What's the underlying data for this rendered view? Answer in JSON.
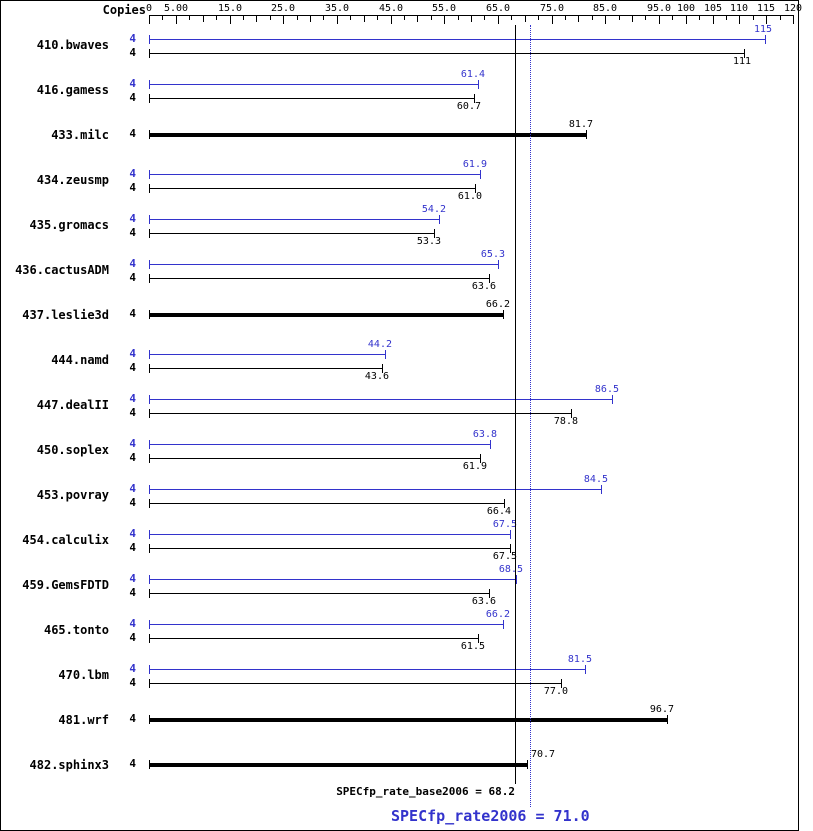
{
  "header": {
    "copies_label": "Copies"
  },
  "chart_data": {
    "type": "bar",
    "orientation": "horizontal",
    "colors": {
      "peak": "#3333cc",
      "base": "#000000"
    },
    "axis": {
      "min": 0,
      "max": 120,
      "ticks": [
        {
          "value": 0,
          "label": "0"
        },
        {
          "value": 5,
          "label": "5.00"
        },
        {
          "value": 15,
          "label": "15.0"
        },
        {
          "value": 25,
          "label": "25.0"
        },
        {
          "value": 35,
          "label": "35.0"
        },
        {
          "value": 45,
          "label": "45.0"
        },
        {
          "value": 55,
          "label": "55.0"
        },
        {
          "value": 65,
          "label": "65.0"
        },
        {
          "value": 75,
          "label": "75.0"
        },
        {
          "value": 85,
          "label": "85.0"
        },
        {
          "value": 95,
          "label": "95.0"
        },
        {
          "value": 100,
          "label": "100"
        },
        {
          "value": 105,
          "label": "105"
        },
        {
          "value": 110,
          "label": "110"
        },
        {
          "value": 115,
          "label": "115"
        },
        {
          "value": 120,
          "label": "120"
        }
      ]
    },
    "benchmarks": [
      {
        "name": "410.bwaves",
        "copies": "4",
        "peak": 115,
        "peak_label": "115",
        "base": 111,
        "base_label": "111"
      },
      {
        "name": "416.gamess",
        "copies": "4",
        "peak": 61.4,
        "peak_label": "61.4",
        "base": 60.7,
        "base_label": "60.7"
      },
      {
        "name": "433.milc",
        "copies": "4",
        "single": true,
        "base": 81.7,
        "base_label": "81.7"
      },
      {
        "name": "434.zeusmp",
        "copies": "4",
        "peak": 61.9,
        "peak_label": "61.9",
        "base": 61.0,
        "base_label": "61.0"
      },
      {
        "name": "435.gromacs",
        "copies": "4",
        "peak": 54.2,
        "peak_label": "54.2",
        "base": 53.3,
        "base_label": "53.3"
      },
      {
        "name": "436.cactusADM",
        "copies": "4",
        "peak": 65.3,
        "peak_label": "65.3",
        "base": 63.6,
        "base_label": "63.6"
      },
      {
        "name": "437.leslie3d",
        "copies": "4",
        "single": true,
        "base": 66.2,
        "base_label": "66.2"
      },
      {
        "name": "444.namd",
        "copies": "4",
        "peak": 44.2,
        "peak_label": "44.2",
        "base": 43.6,
        "base_label": "43.6"
      },
      {
        "name": "447.dealII",
        "copies": "4",
        "peak": 86.5,
        "peak_label": "86.5",
        "base": 78.8,
        "base_label": "78.8"
      },
      {
        "name": "450.soplex",
        "copies": "4",
        "peak": 63.8,
        "peak_label": "63.8",
        "base": 61.9,
        "base_label": "61.9"
      },
      {
        "name": "453.povray",
        "copies": "4",
        "peak": 84.5,
        "peak_label": "84.5",
        "base": 66.4,
        "base_label": "66.4"
      },
      {
        "name": "454.calculix",
        "copies": "4",
        "peak": 67.5,
        "peak_label": "67.5",
        "base": 67.5,
        "base_label": "67.5"
      },
      {
        "name": "459.GemsFDTD",
        "copies": "4",
        "peak": 68.5,
        "peak_label": "68.5",
        "base": 63.6,
        "base_label": "63.6"
      },
      {
        "name": "465.tonto",
        "copies": "4",
        "peak": 66.2,
        "peak_label": "66.2",
        "base": 61.5,
        "base_label": "61.5"
      },
      {
        "name": "470.lbm",
        "copies": "4",
        "peak": 81.5,
        "peak_label": "81.5",
        "base": 77.0,
        "base_label": "77.0"
      },
      {
        "name": "481.wrf",
        "copies": "4",
        "single": true,
        "base": 96.7,
        "base_label": "96.7"
      },
      {
        "name": "482.sphinx3",
        "copies": "4",
        "single": true,
        "base": 70.7,
        "base_label": "70.7",
        "value_label_align": "left"
      }
    ],
    "reference_lines": [
      {
        "name": "SPECfp_rate_base2006",
        "value": 68.2,
        "label": "SPECfp_rate_base2006 = 68.2",
        "color": "#000000",
        "style": "solid"
      },
      {
        "name": "SPECfp_rate2006",
        "value": 71.0,
        "label": "SPECfp_rate2006 = 71.0",
        "color": "#3333cc",
        "style": "dotted"
      }
    ]
  }
}
